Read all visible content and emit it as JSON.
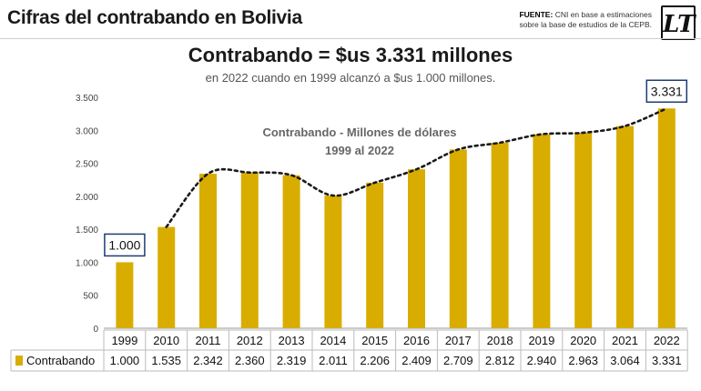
{
  "header": {
    "title": "Cifras del contrabando en Bolivia",
    "source_label": "FUENTE:",
    "source_line1": "CNI en base a estimaciones",
    "source_line2": "sobre la base de estudios de la CEPB.",
    "logo_text": "LT"
  },
  "headline": "Contrabando  = $us 3.331 millones",
  "subheadline": "en 2022 cuando en 1999 alcanzó a $us 1.000 millones.",
  "chart_data": {
    "type": "bar",
    "title": "Contrabando - Millones de dólares",
    "subtitle": "1999 al 2022",
    "categories": [
      "1999",
      "2010",
      "2011",
      "2012",
      "2013",
      "2014",
      "2015",
      "2016",
      "2017",
      "2018",
      "2019",
      "2020",
      "2021",
      "2022"
    ],
    "series": [
      {
        "name": "Contrabando",
        "values": [
          1000,
          1535,
          2342,
          2360,
          2319,
          2011,
          2206,
          2409,
          2709,
          2812,
          2940,
          2963,
          3064,
          3331
        ],
        "value_labels": [
          "1.000",
          "1.535",
          "2.342",
          "2.360",
          "2.319",
          "2.011",
          "2.206",
          "2.409",
          "2.709",
          "2.812",
          "2.940",
          "2.963",
          "3.064",
          "3.331"
        ]
      }
    ],
    "trendline": {
      "style": "dotted",
      "from_index": 1
    },
    "yticks": [
      0,
      500,
      1000,
      1500,
      2000,
      2500,
      3000,
      3500
    ],
    "ytick_labels": [
      "0",
      "500",
      "1.000",
      "1.500",
      "2.000",
      "2.500",
      "3.000",
      "3.500"
    ],
    "ylim": [
      0,
      3500
    ],
    "callouts": [
      {
        "index": 0,
        "text": "1.000"
      },
      {
        "index": 13,
        "text": "3.331"
      }
    ],
    "colors": {
      "bar": "#d9ad00",
      "trend": "#1a1a1a",
      "callout_border": "#1f3b73"
    },
    "grid": false,
    "legend_position": "bottom-left table"
  }
}
